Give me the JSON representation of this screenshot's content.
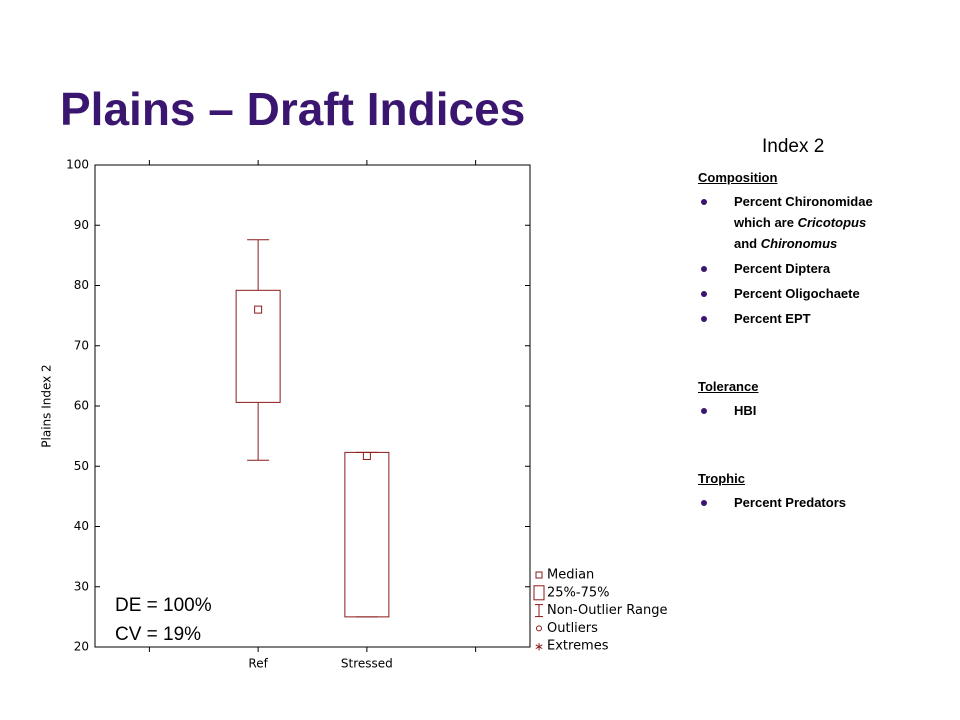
{
  "title": "Plains – Draft Indices",
  "chart_data": {
    "type": "boxplot",
    "y_label": "Plains Index 2",
    "categories": [
      null,
      "Ref",
      "Stressed",
      null
    ],
    "min": [
      null,
      51,
      25,
      null
    ],
    "q1": [
      null,
      60.6,
      25,
      null
    ],
    "median": [
      null,
      76,
      51.7,
      null
    ],
    "q3": [
      null,
      79.2,
      52.3,
      null
    ],
    "max": [
      null,
      87.6,
      52.3,
      null
    ],
    "color": "#8b1a1a",
    "ylim": [
      20,
      100
    ],
    "yticks": [
      20,
      30,
      40,
      50,
      60,
      70,
      80,
      90,
      100
    ],
    "legend": [
      "Median",
      "25%-75%",
      "Non-Outlier Range",
      "Outliers",
      "Extremes"
    ],
    "annotations": [
      "DE = 100%",
      "CV = 19%"
    ]
  },
  "panel": {
    "heading": "Index 2",
    "sections": [
      {
        "title": "Composition",
        "items": [
          [
            {
              "text": "Percent Chironomidae which are "
            },
            {
              "text": "Cricotopus",
              "italic": true
            },
            {
              "text": " and "
            },
            {
              "text": "Chironomus",
              "italic": true
            }
          ],
          [
            {
              "text": "Percent Diptera"
            }
          ],
          [
            {
              "text": "Percent Oligochaete"
            }
          ],
          [
            {
              "text": "Percent EPT"
            }
          ]
        ]
      },
      {
        "title": "Tolerance",
        "items": [
          [
            {
              "text": "HBI"
            }
          ]
        ]
      },
      {
        "title": "Trophic",
        "items": [
          [
            {
              "text": "Percent Predators"
            }
          ]
        ]
      }
    ]
  }
}
